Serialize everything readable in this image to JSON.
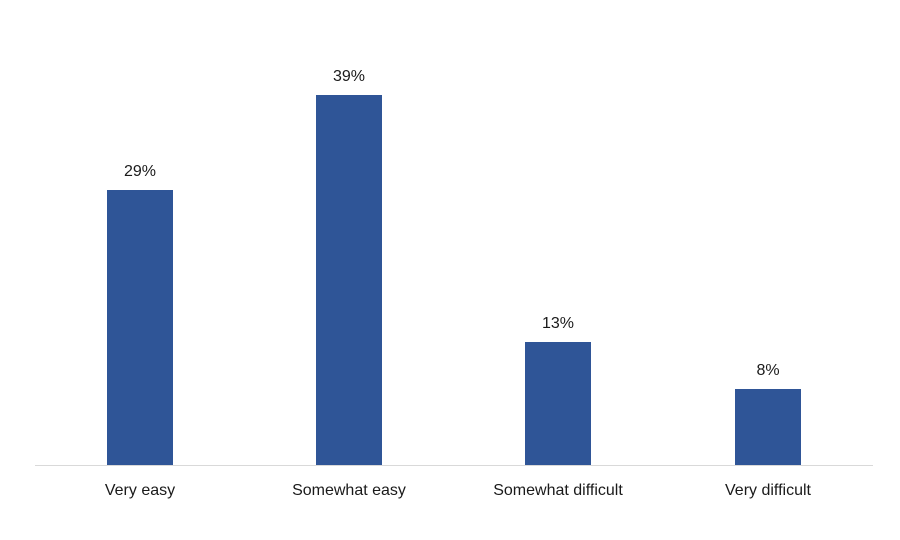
{
  "chart_data": {
    "type": "bar",
    "title": "",
    "xlabel": "",
    "ylabel": "",
    "categories": [
      "Very easy",
      "Somewhat easy",
      "Somewhat difficult",
      "Very difficult"
    ],
    "values": [
      29,
      39,
      13,
      8
    ],
    "value_labels": [
      "29%",
      "39%",
      "13%",
      "8%"
    ],
    "unit": "%",
    "ylim": [
      0,
      45
    ],
    "grid": false,
    "legend": null,
    "bar_color": "#2f5597"
  }
}
